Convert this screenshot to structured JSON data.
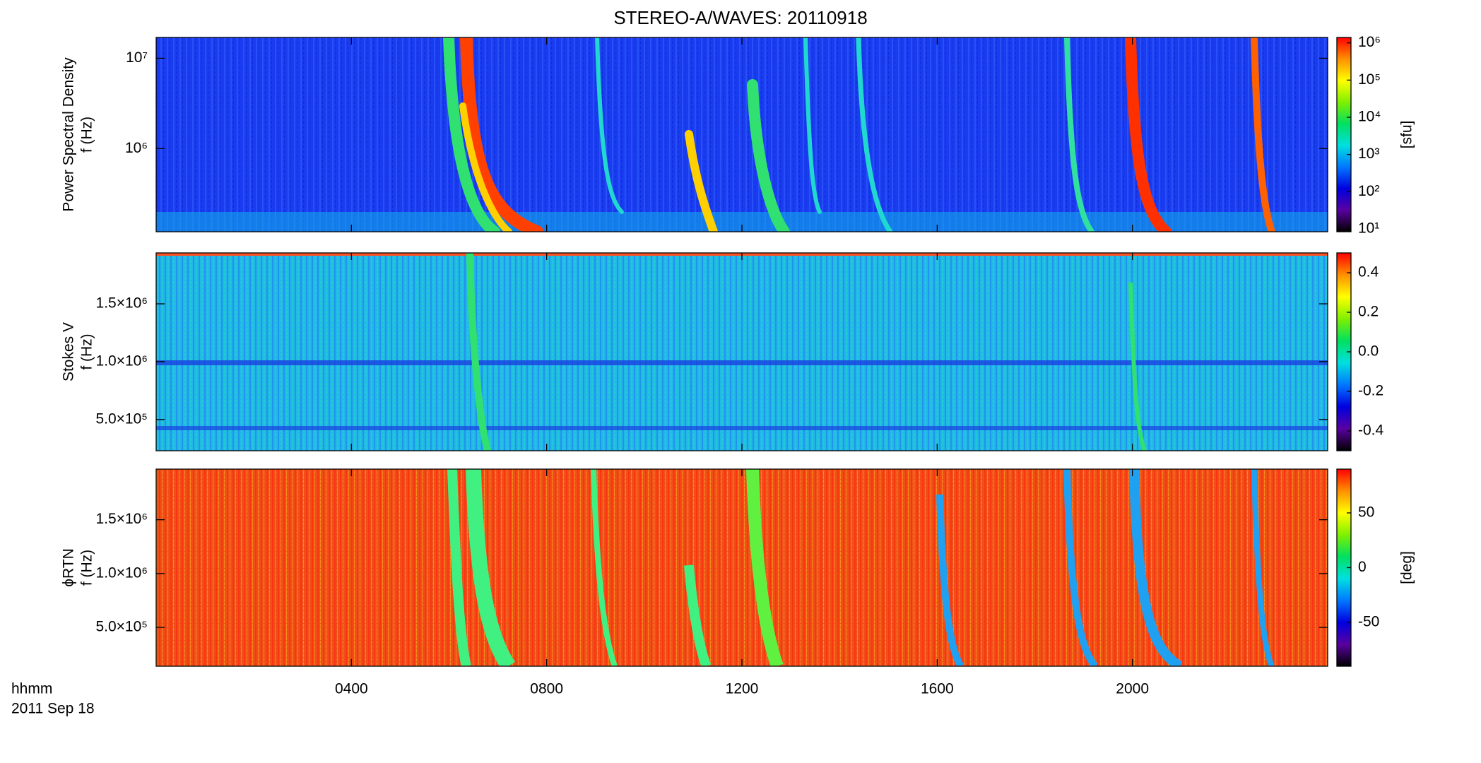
{
  "chart_data": [
    {
      "type": "heatmap",
      "title": "STEREO-A/WAVES: 20110918",
      "ylabel": [
        "Power Spectral Density",
        "f (Hz)"
      ],
      "yscale": "log",
      "ylim": [
        120000,
        17000000
      ],
      "yticks": [
        {
          "value": 1000000,
          "label": "10⁶"
        },
        {
          "value": 10000000,
          "label": "10⁷"
        }
      ],
      "cscale": "log",
      "clim": [
        8.4,
        1400000
      ],
      "cticks": [
        {
          "value": 10,
          "label": "10¹"
        },
        {
          "value": 100,
          "label": "10²"
        },
        {
          "value": 1000,
          "label": "10³"
        },
        {
          "value": 10000,
          "label": "10⁴"
        },
        {
          "value": 100000,
          "label": "10⁵"
        },
        {
          "value": 1000000,
          "label": "10⁶"
        }
      ],
      "clabel": "[sfu]",
      "colormap": [
        "#000000",
        "#5a00a0",
        "#0000e0",
        "#0078ff",
        "#00e0e0",
        "#00e060",
        "#80f000",
        "#ffff00",
        "#ff9000",
        "#ff0000"
      ]
    },
    {
      "type": "heatmap",
      "ylabel": [
        "Stokes V",
        "f (Hz)"
      ],
      "yscale": "linear",
      "ylim": [
        230000,
        1940000
      ],
      "yticks": [
        {
          "value": 500000,
          "label": "5.0×10⁵"
        },
        {
          "value": 1000000,
          "label": "1.0×10⁶"
        },
        {
          "value": 1500000,
          "label": "1.5×10⁶"
        }
      ],
      "cscale": "linear",
      "clim": [
        -0.5,
        0.5
      ],
      "cticks": [
        -0.4,
        -0.2,
        {
          "value": 0,
          "label": "0.0"
        },
        0.2,
        0.4
      ],
      "colormap": [
        "#000000",
        "#5a00a0",
        "#0000e0",
        "#0078ff",
        "#00e0e0",
        "#00e060",
        "#80f000",
        "#ffff00",
        "#ff9000",
        "#ff0000"
      ]
    },
    {
      "type": "heatmap",
      "ylabel": [
        "ϕRTN",
        "f (Hz)"
      ],
      "yscale": "linear",
      "ylim": [
        140000,
        1970000
      ],
      "yticks": [
        {
          "value": 500000,
          "label": "5.0×10⁵"
        },
        {
          "value": 1000000,
          "label": "1.0×10⁶"
        },
        {
          "value": 1500000,
          "label": "1.5×10⁶"
        }
      ],
      "cscale": "linear",
      "clim": [
        -90,
        90
      ],
      "cticks": [
        -50,
        0,
        50
      ],
      "clabel": "[deg]",
      "colormap": [
        "#000000",
        "#5a00a0",
        "#0000e0",
        "#0078ff",
        "#00e0e0",
        "#00e060",
        "#80f000",
        "#ffff00",
        "#ff9000",
        "#ff0000"
      ],
      "xlim": [
        0,
        24
      ],
      "xticks": [
        {
          "value": 4,
          "label": "0400"
        },
        {
          "value": 8,
          "label": "0800"
        },
        {
          "value": 12,
          "label": "1200"
        },
        {
          "value": 16,
          "label": "1600"
        },
        {
          "value": 20,
          "label": "2000"
        }
      ],
      "xlabel": [
        "hhmm",
        "2011 Sep 18"
      ]
    }
  ]
}
